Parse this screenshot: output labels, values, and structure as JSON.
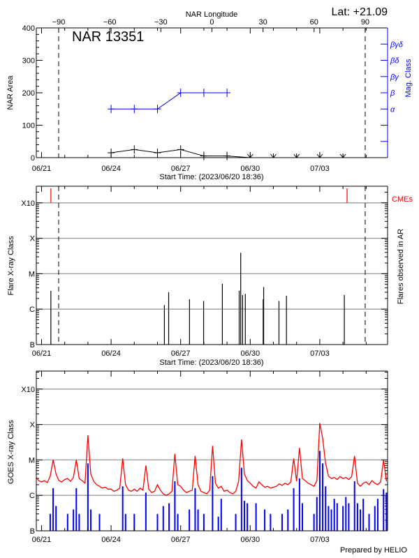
{
  "header": {
    "lat_label": "Lat: +21.09",
    "footer": "Prepared by HELIO"
  },
  "colors": {
    "axis": "#000000",
    "mag_class": "#0000ff",
    "cme": "#ff0000",
    "goes_long": "#ff0000",
    "goes_short": "#0000ff",
    "grid": "#999999"
  },
  "chart_data": [
    {
      "type": "line",
      "title": "NAR 13351",
      "xlabel": "Start Time: (2023/06/20 18:36)",
      "ylabel": "NAR Area",
      "y2label": "Mag. Class",
      "x2label": "NAR Longitude",
      "xlim": [
        "2023-06-20 18:36",
        "2023-07-05 22:10"
      ],
      "ylim": [
        0,
        400
      ],
      "yticks": [
        0,
        100,
        200,
        300,
        400
      ],
      "xticks": [
        {
          "date": "2023-06-21 00:00",
          "label": "06/21"
        },
        {
          "date": "2023-06-24 00:00",
          "label": "06/24"
        },
        {
          "date": "2023-06-27 00:00",
          "label": "06/27"
        },
        {
          "date": "2023-06-30 00:00",
          "label": "06/30"
        },
        {
          "date": "2023-07-03 00:00",
          "label": "07/03"
        }
      ],
      "x2ticks": [
        -90,
        -60,
        -30,
        0,
        30,
        60,
        90
      ],
      "limb_crossings": [
        {
          "date": "2023-06-21 17:45",
          "longitude": -90
        },
        {
          "date": "2023-07-04 23:00",
          "longitude": 90
        }
      ],
      "y2ticks": [
        {
          "value": 50,
          "label": ""
        },
        {
          "value": 100,
          "label": ""
        },
        {
          "value": 150,
          "label": "α"
        },
        {
          "value": 200,
          "label": "β"
        },
        {
          "value": 250,
          "label": "βγ"
        },
        {
          "value": 300,
          "label": "βδ"
        },
        {
          "value": 350,
          "label": "βγδ"
        }
      ],
      "area": {
        "x": [
          "2023-06-24 00:00",
          "2023-06-25 00:00",
          "2023-06-26 00:00",
          "2023-06-27 00:00",
          "2023-06-28 00:00",
          "2023-06-29 00:00",
          "2023-06-30 00:00",
          "2023-07-01 00:00",
          "2023-07-02 00:00",
          "2023-07-03 00:00",
          "2023-07-04 00:00"
        ],
        "values": [
          15,
          25,
          15,
          25,
          5,
          5,
          0,
          0,
          0,
          0,
          0
        ],
        "below_limit_from_index": 6
      },
      "mag_class": {
        "x": [
          "2023-06-24 00:00",
          "2023-06-25 00:00",
          "2023-06-26 00:00",
          "2023-06-27 00:00",
          "2023-06-28 00:00",
          "2023-06-29 00:00"
        ],
        "values": [
          "α",
          "α",
          "α",
          "β",
          "β",
          "β"
        ]
      }
    },
    {
      "type": "bar",
      "xlabel": "Start Time: (2023/06/20 18:36)",
      "ylabel": "Flare X-ray Class",
      "y2label": "Flares observed in AR",
      "cme_label": "CMEs",
      "scale": "log",
      "xlim": [
        "2023-06-20 18:36",
        "2023-07-05 22:10"
      ],
      "ylim": [
        1e-07,
        0.0028
      ],
      "yticks": [
        {
          "value": 1e-07,
          "label": "B"
        },
        {
          "value": 1e-06,
          "label": "C"
        },
        {
          "value": 1e-05,
          "label": "M"
        },
        {
          "value": 0.0001,
          "label": "X"
        },
        {
          "value": 0.001,
          "label": "X10"
        }
      ],
      "grid": true,
      "xticks": [
        {
          "date": "2023-06-21 00:00",
          "label": "06/21"
        },
        {
          "date": "2023-06-24 00:00",
          "label": "06/24"
        },
        {
          "date": "2023-06-27 00:00",
          "label": "06/27"
        },
        {
          "date": "2023-06-30 00:00",
          "label": "06/30"
        },
        {
          "date": "2023-07-03 00:00",
          "label": "07/03"
        }
      ],
      "limb_crossings": [
        "2023-06-21 17:45",
        "2023-07-04 23:00"
      ],
      "flares": [
        {
          "t": "2023-06-21 09:40",
          "class": "C3.3",
          "flux": 3.3e-06
        },
        {
          "t": "2023-06-26 07:10",
          "class": "C1.3",
          "flux": 1.3e-06
        },
        {
          "t": "2023-06-26 11:35",
          "class": "C3.0",
          "flux": 3e-06
        },
        {
          "t": "2023-06-27 09:10",
          "class": "C1.9",
          "flux": 1.9e-06
        },
        {
          "t": "2023-06-27 23:45",
          "class": "C1.7",
          "flux": 1.7e-06
        },
        {
          "t": "2023-06-28 19:10",
          "class": "C5.2",
          "flux": 5.2e-06
        },
        {
          "t": "2023-06-29 12:35",
          "class": "C3.3",
          "flux": 3.3e-06
        },
        {
          "t": "2023-06-29 14:10",
          "class": "M3.9",
          "flux": 3.9e-05
        },
        {
          "t": "2023-06-29 16:05",
          "class": "C2.5",
          "flux": 2.5e-06
        },
        {
          "t": "2023-06-29 18:55",
          "class": "C2.7",
          "flux": 2.7e-06
        },
        {
          "t": "2023-06-30 13:25",
          "class": "C1.9",
          "flux": 1.9e-06
        },
        {
          "t": "2023-06-30 13:55",
          "class": "C4.2",
          "flux": 4.2e-06
        },
        {
          "t": "2023-07-01 05:45",
          "class": "C1.7",
          "flux": 1.7e-06
        },
        {
          "t": "2023-07-01 13:30",
          "class": "C2.4",
          "flux": 2.4e-06
        },
        {
          "t": "2023-07-04 01:25",
          "class": "C2.5",
          "flux": 2.5e-06
        }
      ],
      "cmes": [
        "2023-06-21 09:40",
        "2023-07-04 04:15"
      ]
    },
    {
      "type": "line",
      "ylabel": "GOES X-ray Class",
      "scale": "log",
      "xlim": [
        "2023-06-20 18:36",
        "2023-07-05 22:10"
      ],
      "ylim": [
        1e-07,
        0.0028
      ],
      "yticks": [
        {
          "value": 1e-07,
          "label": "B"
        },
        {
          "value": 1e-06,
          "label": "C"
        },
        {
          "value": 1e-05,
          "label": "M"
        },
        {
          "value": 0.0001,
          "label": "X"
        },
        {
          "value": 0.001,
          "label": "X10"
        }
      ],
      "grid": true,
      "xticks": [
        {
          "date": "2023-06-21 00:00",
          "label": "06/21"
        },
        {
          "date": "2023-06-24 00:00",
          "label": "06/24"
        },
        {
          "date": "2023-06-27 00:00",
          "label": "06/27"
        },
        {
          "date": "2023-06-30 00:00",
          "label": "06/30"
        },
        {
          "date": "2023-07-03 00:00",
          "label": "07/03"
        }
      ],
      "series_start": "2023-06-20 18:00",
      "series_interval_hours": 3,
      "series": [
        {
          "channel": "long",
          "values": [
            3.2e-06,
            2.6e-06,
            2.4e-06,
            2.6e-06,
            2.3e-06,
            3.5e-06,
            1e-05,
            4e-06,
            2.6e-06,
            2.4e-06,
            2.8e-06,
            3e-06,
            2.5e-06,
            3.2e-06,
            1e-05,
            3e-06,
            2.6e-06,
            2.2e-06,
            5e-05,
            4e-06,
            2.5e-06,
            2e-06,
            1.8e-06,
            1.6e-06,
            1.7e-06,
            1.5e-06,
            1.5e-06,
            1.3e-06,
            1.4e-06,
            1.6e-06,
            1.1e-05,
            2e-06,
            1.4e-06,
            1.3e-06,
            1.5e-06,
            1.3e-06,
            1.6e-06,
            1.4e-06,
            7e-06,
            1.5e-06,
            1.2e-06,
            1.3e-06,
            2e-06,
            1.4e-06,
            1.1e-06,
            1e-06,
            1.1e-06,
            1.3e-06,
            1.5e-05,
            2e-06,
            1.8e-06,
            1.4e-06,
            1.2e-06,
            1.3e-06,
            1.4e-06,
            1.3e-05,
            2e-06,
            1.3e-06,
            1.2e-06,
            1.1e-06,
            1.4e-06,
            2.5e-05,
            2.2e-06,
            1.6e-06,
            1.8e-06,
            1.3e-06,
            1.4e-06,
            1.2e-06,
            1.1e-06,
            1.3e-06,
            2.5e-06,
            3.8e-05,
            4e-06,
            2.6e-06,
            2.2e-06,
            1.8e-06,
            1.6e-06,
            2.4e-06,
            2e-06,
            1.7e-06,
            1.8e-06,
            1.6e-06,
            1.7e-06,
            1.8e-06,
            2.1e-06,
            1.9e-06,
            2.2e-06,
            2e-06,
            2.4e-06,
            1.1e-05,
            2.5e-06,
            2.2e-05,
            3e-06,
            2.6e-06,
            2.2e-06,
            2e-06,
            1.8e-06,
            2.6e-06,
            0.00011,
            4e-05,
            8e-06,
            3.5e-06,
            3e-06,
            3.2e-06,
            2.8e-06,
            3.4e-06,
            3e-06,
            3.2e-06,
            2.8e-06,
            3.4e-06,
            1.3e-05,
            2.2e-06,
            1.8e-06,
            2.2e-06,
            2.4e-06,
            2e-06,
            2.6e-06,
            2.2e-06,
            2e-06,
            2.4e-06,
            1e-05,
            2.5e-06
          ]
        },
        {
          "channel": "short",
          "values": [
            4e-07,
            1e-07,
            1e-07,
            1e-07,
            1e-07,
            3e-07,
            1.6e-06,
            5e-07,
            1e-07,
            1e-07,
            1e-07,
            3e-07,
            1e-07,
            4e-07,
            1.6e-06,
            3e-07,
            1e-07,
            1e-07,
            8e-06,
            4e-07,
            1e-07,
            1e-07,
            3e-07,
            1e-07,
            1e-07,
            1e-07,
            1e-07,
            1e-07,
            1e-07,
            1e-07,
            1.8e-06,
            3e-07,
            1e-07,
            1e-07,
            3e-07,
            1e-07,
            1e-07,
            1e-07,
            1.2e-06,
            1e-07,
            1e-07,
            1e-07,
            3e-07,
            1e-07,
            5e-07,
            1e-07,
            6e-07,
            1e-07,
            2.5e-06,
            3e-07,
            1e-07,
            1e-07,
            1e-07,
            4e-07,
            1e-07,
            1.6e-06,
            4e-07,
            1e-07,
            3e-07,
            1e-07,
            1e-07,
            3.5e-06,
            1e-07,
            2.5e-07,
            8e-07,
            1e-07,
            1e-07,
            1e-07,
            1e-07,
            3e-07,
            1e-07,
            6e-06,
            7e-07,
            6e-07,
            1e-07,
            1e-07,
            6e-07,
            1e-07,
            1e-07,
            4e-07,
            1e-07,
            3e-07,
            1e-07,
            1e-07,
            1e-07,
            3e-07,
            1e-07,
            4e-07,
            1e-07,
            1.6e-06,
            1e-07,
            3e-06,
            6e-07,
            1e-07,
            1e-07,
            1e-07,
            3e-07,
            9e-07,
            1.8e-05,
            8e-06,
            1.8e-06,
            5e-07,
            4e-07,
            8e-07,
            6e-07,
            1e-07,
            5e-07,
            9e-07,
            6e-07,
            1e-07,
            2.5e-06,
            6e-07,
            4e-07,
            8e-07,
            1e-07,
            3e-07,
            1e-07,
            5e-07,
            8e-07,
            1e-07,
            1.5e-06,
            1.2e-06
          ]
        }
      ]
    }
  ]
}
